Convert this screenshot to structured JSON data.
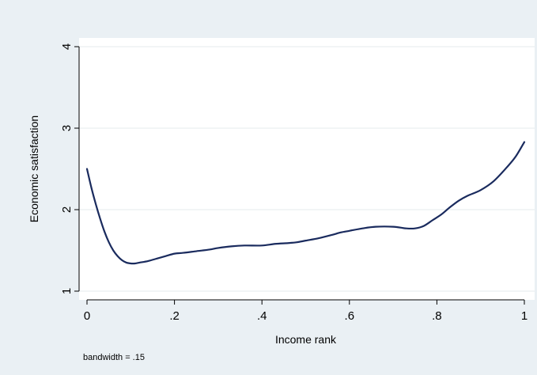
{
  "chart_data": {
    "type": "line",
    "title": "",
    "xlabel": "Income rank",
    "ylabel": "Economic satisfaction",
    "xlim": [
      0,
      1
    ],
    "ylim": [
      1,
      4
    ],
    "x_ticks": [
      0,
      0.2,
      0.4,
      0.6,
      0.8,
      1
    ],
    "x_tick_labels": [
      "0",
      ".2",
      ".4",
      ".6",
      ".8",
      "1"
    ],
    "y_ticks": [
      1,
      2,
      3,
      4
    ],
    "y_tick_labels": [
      "1",
      "2",
      "3",
      "4"
    ],
    "grid": "horizontal",
    "legend": "none",
    "note": "bandwidth = .15",
    "colors": {
      "background": "#eaf0f4",
      "plot_area": "#ffffff",
      "line": "#1a2b5e",
      "grid": "#e6ebee"
    },
    "series": [
      {
        "x": [
          0,
          0.01,
          0.02,
          0.03,
          0.04,
          0.05,
          0.06,
          0.07,
          0.08,
          0.09,
          0.1,
          0.11,
          0.12,
          0.14,
          0.16,
          0.18,
          0.2,
          0.22,
          0.25,
          0.28,
          0.3,
          0.33,
          0.36,
          0.4,
          0.43,
          0.46,
          0.48,
          0.5,
          0.53,
          0.56,
          0.58,
          0.6,
          0.63,
          0.66,
          0.7,
          0.73,
          0.75,
          0.77,
          0.79,
          0.81,
          0.83,
          0.85,
          0.87,
          0.9,
          0.93,
          0.96,
          0.98,
          1.0
        ],
        "y": [
          2.5,
          2.27,
          2.07,
          1.89,
          1.73,
          1.6,
          1.5,
          1.43,
          1.38,
          1.35,
          1.34,
          1.34,
          1.35,
          1.37,
          1.4,
          1.43,
          1.46,
          1.47,
          1.49,
          1.51,
          1.53,
          1.55,
          1.56,
          1.56,
          1.58,
          1.59,
          1.6,
          1.62,
          1.65,
          1.69,
          1.72,
          1.74,
          1.77,
          1.79,
          1.79,
          1.77,
          1.77,
          1.8,
          1.87,
          1.94,
          2.03,
          2.11,
          2.17,
          2.24,
          2.35,
          2.52,
          2.65,
          2.83
        ]
      }
    ]
  }
}
